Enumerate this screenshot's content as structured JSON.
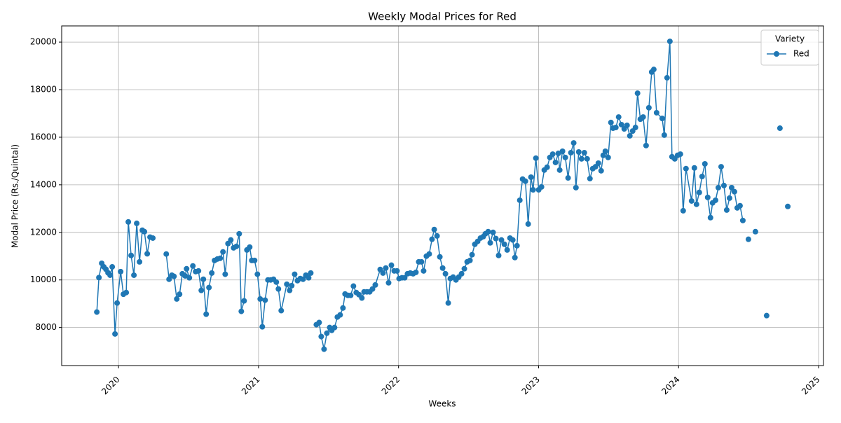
{
  "chart_data": {
    "type": "line",
    "title": "Weekly Modal Prices for Red",
    "x_label": "Weeks",
    "y_label": "Modal Price (Rs./Quintal)",
    "legend_title": "Variety",
    "legend": "upper right",
    "grid": true,
    "xlim": [
      2019.594,
      2025.035
    ],
    "xticks": [
      2020,
      2021,
      2022,
      2023,
      2024,
      2025
    ],
    "ylim": [
      6400,
      20680
    ],
    "yticks": [
      8000,
      10000,
      12000,
      14000,
      16000,
      18000,
      20000
    ],
    "x": [
      2019.845,
      2019.86,
      2019.88,
      2019.895,
      2019.91,
      2019.925,
      2019.94,
      2019.955,
      2019.975,
      2019.99,
      2020.015,
      2020.035,
      2020.055,
      2020.07,
      2020.09,
      2020.11,
      2020.13,
      2020.15,
      2020.17,
      2020.185,
      2020.205,
      2020.225,
      2020.245,
      2020.295,
      2020.341,
      2020.361,
      2020.381,
      2020.396,
      2020.416,
      2020.436,
      2020.456,
      2020.476,
      2020.486,
      2020.506,
      2020.531,
      2020.551,
      2020.571,
      2020.591,
      2020.606,
      2020.626,
      2020.646,
      2020.666,
      2020.686,
      2020.706,
      2020.726,
      2020.746,
      2020.762,
      2020.782,
      2020.802,
      2020.822,
      2020.842,
      2020.862,
      2020.877,
      2020.897,
      2020.917,
      2020.937,
      2020.952,
      2020.972,
      2020.992,
      2021.012,
      2021.027,
      2021.047,
      2021.067,
      2021.087,
      2021.107,
      2021.127,
      2021.142,
      2021.162,
      2021.202,
      2021.222,
      2021.237,
      2021.258,
      2021.278,
      2021.298,
      2021.318,
      2021.338,
      2021.358,
      2021.373,
      2021.393,
      2021.413,
      2021.433,
      2021.448,
      2021.468,
      2021.488,
      2021.508,
      2021.523,
      2021.543,
      2021.563,
      2021.583,
      2021.603,
      2021.618,
      2021.638,
      2021.658,
      2021.678,
      2021.698,
      2021.718,
      2021.738,
      2021.754,
      2021.774,
      2021.794,
      2021.814,
      2021.834,
      2021.869,
      2021.889,
      2021.909,
      2021.929,
      2021.949,
      2021.969,
      2021.989,
      2022.004,
      2022.024,
      2022.044,
      2022.064,
      2022.084,
      2022.104,
      2022.124,
      2022.144,
      2022.164,
      2022.179,
      2022.199,
      2022.219,
      2022.239,
      2022.255,
      2022.275,
      2022.295,
      2022.315,
      2022.335,
      2022.355,
      2022.37,
      2022.39,
      2022.41,
      2022.43,
      2022.45,
      2022.47,
      2022.49,
      2022.51,
      2022.525,
      2022.545,
      2022.565,
      2022.585,
      2022.605,
      2022.62,
      2022.64,
      2022.655,
      2022.675,
      2022.695,
      2022.715,
      2022.735,
      2022.756,
      2022.776,
      2022.796,
      2022.816,
      2022.831,
      2022.846,
      2022.866,
      2022.886,
      2022.906,
      2022.926,
      2022.946,
      2022.961,
      2022.981,
      2023.001,
      2023.021,
      2023.041,
      2023.061,
      2023.081,
      2023.101,
      2023.121,
      2023.141,
      2023.151,
      2023.171,
      2023.191,
      2023.211,
      2023.231,
      2023.251,
      2023.267,
      2023.287,
      2023.307,
      2023.327,
      2023.347,
      2023.367,
      2023.387,
      2023.407,
      2023.427,
      2023.447,
      2023.462,
      2023.477,
      2023.497,
      2023.517,
      2023.532,
      2023.552,
      2023.572,
      2023.592,
      2023.612,
      2023.632,
      2023.652,
      2023.672,
      2023.692,
      2023.707,
      2023.727,
      2023.747,
      2023.768,
      2023.788,
      2023.808,
      2023.823,
      2023.843,
      2023.883,
      2023.898,
      2023.918,
      2023.938,
      2023.953,
      2023.973,
      2023.993,
      2024.013,
      2024.033,
      2024.053,
      2024.093,
      2024.113,
      2024.128,
      2024.148,
      2024.168,
      2024.188,
      2024.208,
      2024.228,
      2024.243,
      2024.264,
      2024.284,
      2024.304,
      2024.324,
      2024.344,
      2024.364,
      2024.379,
      2024.399,
      2024.419,
      2024.439,
      2024.459,
      2024.48,
      2024.499,
      2024.525,
      2024.549,
      2024.59,
      2024.629,
      2024.68,
      2024.724,
      2024.75,
      2024.78
    ],
    "series": [
      {
        "name": "Red",
        "color": "#1f77b4",
        "values": [
          8650,
          10100,
          10700,
          10550,
          10450,
          10300,
          10200,
          10550,
          7730,
          9030,
          10350,
          9400,
          9470,
          12440,
          11030,
          10200,
          12380,
          10760,
          12090,
          12030,
          11100,
          11800,
          11760,
          null,
          11090,
          10030,
          10200,
          10150,
          9200,
          9400,
          10260,
          10170,
          10470,
          10090,
          10590,
          10350,
          10380,
          9560,
          10030,
          8560,
          9680,
          10290,
          10820,
          10880,
          10910,
          11180,
          10240,
          11530,
          11680,
          11350,
          11410,
          11940,
          8680,
          9120,
          11260,
          11380,
          10820,
          10820,
          10240,
          9200,
          8030,
          9150,
          10000,
          10000,
          10030,
          9910,
          9620,
          8710,
          9820,
          9560,
          9760,
          10240,
          9970,
          10060,
          10030,
          10200,
          10090,
          10290,
          null,
          8120,
          8210,
          7620,
          7090,
          7760,
          8000,
          7880,
          8000,
          8440,
          8530,
          8820,
          9410,
          9350,
          9350,
          9740,
          9470,
          9380,
          9240,
          9500,
          9500,
          9500,
          9620,
          9790,
          10440,
          10290,
          10500,
          9880,
          10620,
          10380,
          10380,
          10060,
          10090,
          10090,
          10260,
          10290,
          10260,
          10320,
          10760,
          10760,
          10380,
          11000,
          11090,
          11710,
          12120,
          11850,
          10970,
          10500,
          10260,
          9030,
          10060,
          10120,
          10000,
          10120,
          10260,
          10470,
          10760,
          10820,
          11060,
          11500,
          11620,
          11760,
          11820,
          11940,
          12030,
          11560,
          12000,
          11740,
          11030,
          11680,
          11500,
          11260,
          11760,
          11680,
          10940,
          11440,
          13350,
          14240,
          14150,
          12350,
          14320,
          13790,
          15120,
          13790,
          13910,
          14620,
          14740,
          15150,
          15290,
          14940,
          15320,
          14620,
          15410,
          15150,
          14290,
          15350,
          15760,
          13880,
          15380,
          15090,
          15350,
          15090,
          14260,
          14680,
          14760,
          14910,
          14590,
          15240,
          15410,
          15150,
          16620,
          16380,
          16410,
          16850,
          16530,
          16350,
          16500,
          16060,
          16260,
          16410,
          17850,
          16760,
          16850,
          15650,
          17240,
          18740,
          18850,
          17030,
          16790,
          16090,
          18500,
          20030,
          15180,
          15090,
          15240,
          15290,
          12910,
          14680,
          13320,
          14710,
          13180,
          13680,
          14350,
          14880,
          13470,
          12620,
          13240,
          13350,
          13880,
          14760,
          13970,
          12940,
          13440,
          13880,
          13710,
          13030,
          13120,
          12500,
          null,
          11710,
          null,
          12030,
          null,
          8500,
          null,
          16380,
          null,
          13090
        ]
      }
    ]
  }
}
